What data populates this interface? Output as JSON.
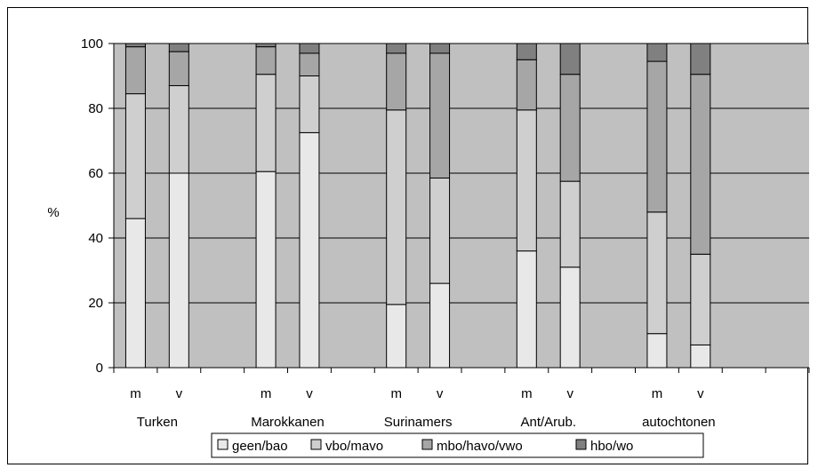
{
  "chart_data": {
    "type": "bar",
    "stacked": true,
    "ylabel": "%",
    "ylim": [
      0,
      100
    ],
    "yticks": [
      0,
      20,
      40,
      60,
      80,
      100
    ],
    "grid": true,
    "legend_position": "bottom",
    "groups": [
      "Turken",
      "Marokkanen",
      "Surinamers",
      "Ant/Arub.",
      "autochtonen"
    ],
    "categories": [
      "m",
      "v"
    ],
    "series": [
      {
        "name": "geen/bao",
        "color": "#e8e8e8",
        "values": [
          [
            46,
            60
          ],
          [
            60.5,
            72.5
          ],
          [
            19.5,
            26
          ],
          [
            36,
            31
          ],
          [
            10.5,
            7
          ]
        ]
      },
      {
        "name": "vbo/mavo",
        "color": "#cfcfcf",
        "values": [
          [
            38.5,
            27
          ],
          [
            30,
            17.5
          ],
          [
            60,
            32.5
          ],
          [
            43.5,
            26.5
          ],
          [
            37.5,
            28
          ]
        ]
      },
      {
        "name": "mbo/havo/vwo",
        "color": "#a6a6a6",
        "values": [
          [
            14.5,
            10.5
          ],
          [
            8.5,
            7
          ],
          [
            17.5,
            38.5
          ],
          [
            15.5,
            33
          ],
          [
            46.5,
            55.5
          ]
        ]
      },
      {
        "name": "hbo/wo",
        "color": "#808080",
        "values": [
          [
            1,
            2.5
          ],
          [
            1,
            3
          ],
          [
            3,
            3
          ],
          [
            5,
            9.5
          ],
          [
            5.5,
            9.5
          ]
        ]
      }
    ]
  },
  "colors": {
    "plot_background": "#c0c0c0"
  }
}
